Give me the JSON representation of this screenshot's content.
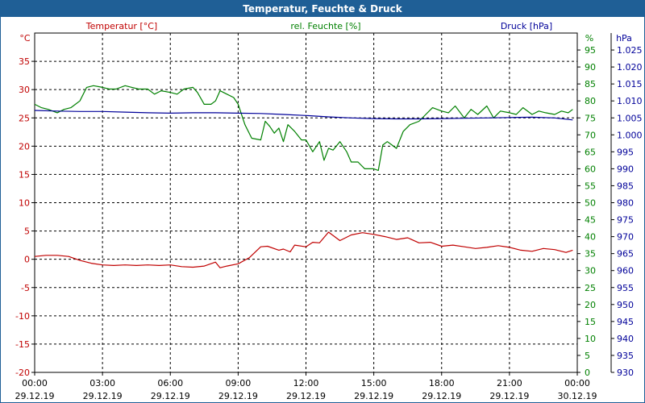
{
  "window": {
    "title": "Temperatur, Feuchte & Druck"
  },
  "chart_data": {
    "type": "line",
    "title": "Temperatur, Feuchte & Druck",
    "x_ticks": [
      {
        "h": 0,
        "time": "00:00",
        "date": "29.12.19"
      },
      {
        "h": 3,
        "time": "03:00",
        "date": "29.12.19"
      },
      {
        "h": 6,
        "time": "06:00",
        "date": "29.12.19"
      },
      {
        "h": 9,
        "time": "09:00",
        "date": "29.12.19"
      },
      {
        "h": 12,
        "time": "12:00",
        "date": "29.12.19"
      },
      {
        "h": 15,
        "time": "15:00",
        "date": "29.12.19"
      },
      {
        "h": 18,
        "time": "18:00",
        "date": "29.12.19"
      },
      {
        "h": 21,
        "time": "21:00",
        "date": "29.12.19"
      },
      {
        "h": 24,
        "time": "00:00",
        "date": "30.12.19"
      }
    ],
    "xlim": [
      0,
      24
    ],
    "grid": true,
    "axes": {
      "temperature": {
        "unit": "°C",
        "label": "Temperatur [°C]",
        "ylim": [
          -20,
          40
        ],
        "ticks": [
          -20,
          -15,
          -10,
          -5,
          0,
          5,
          10,
          15,
          20,
          25,
          30,
          35
        ],
        "color": "#c00000"
      },
      "humidity": {
        "unit": "%",
        "label": "rel. Feuchte [%]",
        "ylim": [
          0,
          100
        ],
        "ticks": [
          0,
          5,
          10,
          15,
          20,
          25,
          30,
          35,
          40,
          45,
          50,
          55,
          60,
          65,
          70,
          75,
          80,
          85,
          90,
          95
        ],
        "color": "#008000"
      },
      "pressure": {
        "unit": "hPa",
        "label": "Druck [hPa]",
        "ylim": [
          930,
          1030
        ],
        "ticks": [
          "930",
          "935",
          "940",
          "945",
          "950",
          "955",
          "960",
          "965",
          "970",
          "975",
          "980",
          "985",
          "990",
          "995",
          "1.000",
          "1.005",
          "1.010",
          "1.015",
          "1.020",
          "1.025"
        ],
        "color": "#000099"
      }
    },
    "series": [
      {
        "name": "Temperatur [°C]",
        "axis": "temperature",
        "color": "#c00000",
        "x": [
          0,
          0.5,
          1,
          1.5,
          2,
          2.5,
          3,
          3.5,
          4,
          4.5,
          5,
          5.5,
          6,
          6.5,
          7,
          7.5,
          8,
          8.2,
          8.5,
          9,
          9.5,
          10,
          10.3,
          10.8,
          11,
          11.3,
          11.5,
          12,
          12.3,
          12.6,
          13,
          13.5,
          14,
          14.5,
          15,
          15.5,
          16,
          16.5,
          17,
          17.5,
          18,
          18.5,
          19,
          19.5,
          20,
          20.5,
          21,
          21.5,
          22,
          22.5,
          23,
          23.5,
          23.8
        ],
        "y": [
          0.5,
          0.7,
          0.7,
          0.5,
          -0.2,
          -0.7,
          -1,
          -1.1,
          -1,
          -1.1,
          -1,
          -1.1,
          -1,
          -1.3,
          -1.4,
          -1.2,
          -0.5,
          -1.5,
          -1.2,
          -0.8,
          0.3,
          2.2,
          2.3,
          1.6,
          1.8,
          1.3,
          2.5,
          2.2,
          3,
          2.9,
          4.8,
          3.3,
          4.3,
          4.7,
          4.4,
          4,
          3.5,
          3.8,
          2.9,
          3,
          2.3,
          2.5,
          2.2,
          1.9,
          2.1,
          2.4,
          2.1,
          1.6,
          1.4,
          1.9,
          1.7,
          1.2,
          1.6
        ]
      },
      {
        "name": "rel. Feuchte [%]",
        "axis": "humidity",
        "color": "#008000",
        "x": [
          0,
          0.3,
          0.6,
          1,
          1.3,
          1.6,
          2,
          2.3,
          2.6,
          3,
          3.3,
          3.6,
          4,
          4.3,
          4.6,
          5,
          5.3,
          5.6,
          6,
          6.3,
          6.6,
          7,
          7.2,
          7.5,
          7.8,
          8,
          8.2,
          8.5,
          8.8,
          9,
          9.3,
          9.6,
          10,
          10.2,
          10.4,
          10.6,
          10.8,
          11,
          11.2,
          11.5,
          11.8,
          12,
          12.3,
          12.6,
          12.8,
          13,
          13.2,
          13.5,
          13.8,
          14,
          14.3,
          14.6,
          15,
          15.2,
          15.4,
          15.6,
          15.8,
          16,
          16.3,
          16.6,
          17,
          17.3,
          17.6,
          18,
          18.3,
          18.6,
          19,
          19.3,
          19.6,
          20,
          20.3,
          20.6,
          21,
          21.3,
          21.6,
          22,
          22.3,
          22.6,
          23,
          23.3,
          23.6,
          23.8
        ],
        "y": [
          79,
          78,
          77.5,
          76.5,
          77.5,
          78,
          80,
          84,
          84.5,
          84,
          83.5,
          83.5,
          84.5,
          84,
          83.5,
          83.5,
          82,
          83,
          82.5,
          82,
          83.5,
          84,
          82.5,
          79,
          79,
          80,
          83,
          82,
          81,
          79,
          73,
          69,
          68.5,
          74,
          72.5,
          70.5,
          72,
          68,
          73,
          71,
          68.5,
          68.5,
          65,
          68,
          62.5,
          66,
          65.5,
          68,
          65,
          62,
          62,
          60,
          60,
          59.5,
          67,
          68,
          67,
          66,
          71,
          73,
          74,
          76,
          78,
          77,
          76.5,
          78.5,
          75,
          77.5,
          76,
          78.5,
          75,
          77,
          76.5,
          76,
          78,
          76,
          77,
          76.5,
          76,
          77,
          76.5,
          77.5
        ]
      },
      {
        "name": "Druck [hPa]",
        "axis": "pressure",
        "color": "#000099",
        "x": [
          0,
          1,
          2,
          3,
          4,
          5,
          6,
          7,
          8,
          9,
          10,
          11,
          12,
          13,
          14,
          15,
          16,
          17,
          18,
          19,
          20,
          21,
          22,
          23,
          23.8
        ],
        "y": [
          1007.2,
          1007.0,
          1006.9,
          1006.9,
          1006.7,
          1006.5,
          1006.4,
          1006.5,
          1006.5,
          1006.4,
          1006.3,
          1006.0,
          1005.7,
          1005.3,
          1005.0,
          1004.8,
          1004.7,
          1004.7,
          1004.8,
          1004.9,
          1005.0,
          1005.1,
          1005.2,
          1005.0,
          1004.4
        ]
      }
    ]
  }
}
